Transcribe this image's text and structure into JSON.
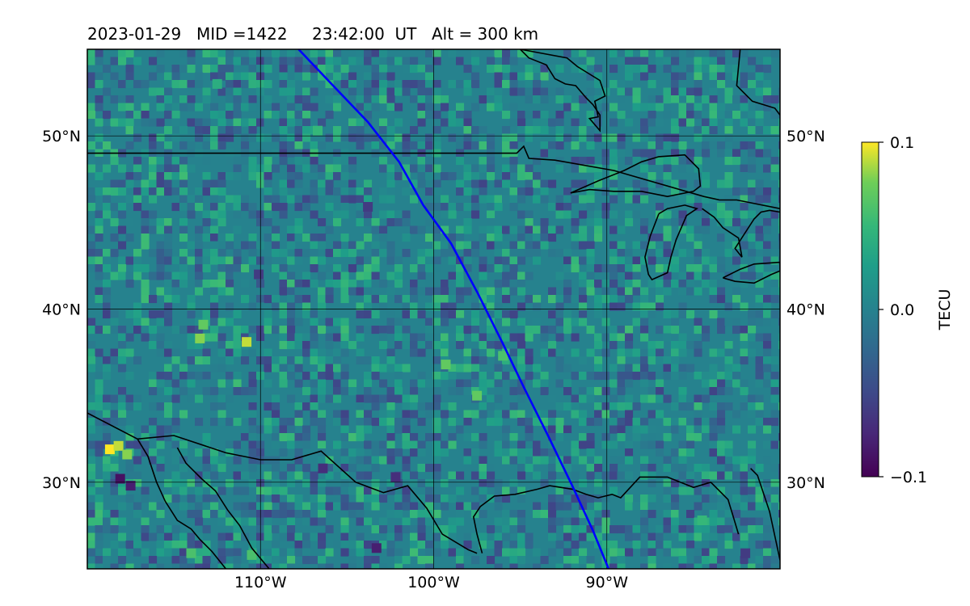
{
  "chart_data": {
    "type": "heatmap",
    "title": {
      "date": "2023-01-29",
      "mid": "MID =1422",
      "time": "23:42:00  UT",
      "alt": "Alt = 300 km"
    },
    "map": {
      "lon_range": [
        -120,
        -80
      ],
      "lat_range": [
        25,
        55
      ],
      "lon_ticks": [
        -110,
        -100,
        -90
      ],
      "lon_tick_labels": [
        "110°W",
        "100°W",
        "90°W"
      ],
      "lat_ticks": [
        30,
        40,
        50
      ],
      "lat_tick_labels": [
        "30°N",
        "40°N",
        "50°N"
      ],
      "grid": true,
      "background_value": 0.0,
      "colormap": "viridis"
    },
    "colorbar": {
      "label": "TECU",
      "min": -0.1,
      "max": 0.1,
      "ticks": [
        0.1,
        0.0,
        -0.1
      ],
      "tick_labels": [
        "0.1",
        "0.0",
        "−0.1"
      ],
      "placement": "right"
    },
    "track": {
      "color": "#0000ff",
      "lon": [
        -107.8,
        -105.9,
        -103.8,
        -102.0,
        -100.6,
        -99.0,
        -97.5,
        -96.0,
        -94.8,
        -93.4,
        -92.0,
        -90.8,
        -89.9
      ],
      "lat": [
        55.0,
        53.0,
        50.8,
        48.5,
        46.0,
        43.8,
        41.0,
        38.0,
        35.5,
        32.7,
        29.8,
        27.2,
        25.0
      ]
    },
    "coastlines": {
      "color": "#000000",
      "segments": [
        {
          "name": "us-canada-border",
          "lon": [
            -120,
            -95.2,
            -94.8,
            -94.5,
            -93.0,
            -89.6,
            -84.4,
            -83.5,
            -82.5,
            -80
          ],
          "lat": [
            49.0,
            49.0,
            49.4,
            48.7,
            48.6,
            48.0,
            46.5,
            46.3,
            46.3,
            45.8
          ]
        },
        {
          "name": "lake-superior",
          "lon": [
            -92.1,
            -90.5,
            -89.0,
            -88.0,
            -87.0,
            -85.5,
            -84.7,
            -84.6,
            -85.0,
            -86.5,
            -88.0,
            -89.6,
            -91.0,
            -92.1
          ],
          "lat": [
            46.7,
            47.4,
            48.0,
            48.5,
            48.8,
            48.9,
            48.1,
            47.1,
            46.8,
            46.5,
            46.8,
            46.8,
            46.9,
            46.7
          ]
        },
        {
          "name": "lake-michigan",
          "lon": [
            -87.0,
            -87.5,
            -87.8,
            -87.6,
            -87.4,
            -86.5,
            -86.3,
            -86.0,
            -85.4,
            -84.8,
            -85.5,
            -86.5,
            -87.0
          ],
          "lat": [
            45.5,
            44.2,
            43.0,
            42.0,
            41.7,
            42.1,
            43.0,
            44.0,
            45.4,
            45.8,
            46.0,
            45.8,
            45.5
          ]
        },
        {
          "name": "lake-huron",
          "lon": [
            -84.5,
            -83.8,
            -83.3,
            -82.4,
            -82.2,
            -82.6,
            -81.5,
            -81.1,
            -80.6,
            -80.0
          ],
          "lat": [
            45.8,
            45.3,
            44.7,
            44.1,
            43.0,
            43.5,
            45.2,
            45.6,
            45.7,
            45.6
          ]
        },
        {
          "name": "lake-erie",
          "lon": [
            -83.3,
            -82.6,
            -81.5,
            -80.5,
            -80.0,
            -80.0,
            -81.5,
            -82.3,
            -83.3
          ],
          "lat": [
            41.8,
            41.6,
            41.5,
            42.0,
            42.2,
            42.7,
            42.6,
            42.3,
            41.8
          ]
        },
        {
          "name": "hudson-bay-coast",
          "lon": [
            -95.0,
            -94.5,
            -93.5,
            -93.0,
            -92.4,
            -91.8,
            -91.2,
            -90.8,
            -90.4,
            -90.4,
            -91.0,
            -90.5,
            -90.7,
            -90.1,
            -90.4,
            -91.7,
            -92.3,
            -95.0
          ],
          "lat": [
            55.0,
            54.5,
            54.1,
            53.3,
            53.0,
            52.9,
            52.2,
            51.8,
            51.2,
            50.3,
            51.0,
            51.1,
            52.0,
            52.3,
            53.2,
            54.0,
            54.5,
            55.0
          ]
        },
        {
          "name": "james-bay-coast",
          "lon": [
            -82.3,
            -82.5,
            -81.6,
            -80.3,
            -80.0
          ],
          "lat": [
            55.0,
            52.9,
            52.0,
            51.6,
            51.2
          ]
        },
        {
          "name": "gulf-coast",
          "lon": [
            -97.2,
            -97.5,
            -97.7,
            -97.3,
            -96.5,
            -95.3,
            -94.0,
            -93.3,
            -92.0,
            -91.2,
            -90.5,
            -89.7,
            -89.2,
            -88.1,
            -86.5,
            -85.0,
            -84.0,
            -83.0,
            -82.7,
            -82.4
          ],
          "lat": [
            25.9,
            27.0,
            28.0,
            28.6,
            29.2,
            29.3,
            29.6,
            29.8,
            29.6,
            29.3,
            29.1,
            29.3,
            29.1,
            30.3,
            30.3,
            29.7,
            30.0,
            29.0,
            28.0,
            27.0
          ]
        },
        {
          "name": "florida-peninsula-east",
          "lon": [
            -80.0,
            -80.6,
            -81.3,
            -81.7
          ],
          "lat": [
            25.5,
            28.3,
            30.4,
            30.8
          ]
        },
        {
          "name": "mexico-border",
          "lon": [
            -120,
            -117.1,
            -115.0,
            -112.0,
            -110.0,
            -108.2,
            -106.5,
            -104.5,
            -102.9,
            -101.5,
            -100.4,
            -99.5,
            -98.0,
            -97.5
          ],
          "lat": [
            34.0,
            32.5,
            32.7,
            31.7,
            31.3,
            31.3,
            31.8,
            30.0,
            29.4,
            29.8,
            28.5,
            27.0,
            26.1,
            25.9
          ]
        },
        {
          "name": "baja-coast",
          "lon": [
            -117.1,
            -116.5,
            -116.0,
            -115.5,
            -114.8,
            -114.0,
            -113.5,
            -112.8,
            -112.0,
            -110.5
          ],
          "lat": [
            32.5,
            31.5,
            30.0,
            28.9,
            27.8,
            27.3,
            26.7,
            26.0,
            25.0,
            24.5
          ]
        },
        {
          "name": "sonora-coast",
          "lon": [
            -114.8,
            -114.3,
            -113.4,
            -112.6,
            -111.9,
            -111.2,
            -110.5,
            -109.5
          ],
          "lat": [
            32.0,
            31.1,
            30.2,
            29.5,
            28.4,
            27.5,
            26.2,
            25.0
          ]
        }
      ]
    },
    "anomalies": [
      {
        "lon": -118.7,
        "lat": 31.9,
        "value": 0.1
      },
      {
        "lon": -118.2,
        "lat": 32.1,
        "value": 0.09
      },
      {
        "lon": -117.7,
        "lat": 31.6,
        "value": 0.08
      },
      {
        "lon": -118.1,
        "lat": 30.2,
        "value": -0.09
      },
      {
        "lon": -117.5,
        "lat": 29.8,
        "value": -0.08
      },
      {
        "lon": -113.5,
        "lat": 38.3,
        "value": 0.08
      },
      {
        "lon": -110.8,
        "lat": 38.1,
        "value": 0.09
      },
      {
        "lon": -113.3,
        "lat": 39.1,
        "value": 0.07
      },
      {
        "lon": -99.3,
        "lat": 36.8,
        "value": 0.07
      },
      {
        "lon": -97.5,
        "lat": 35.0,
        "value": 0.07
      },
      {
        "lon": -96.0,
        "lat": 37.3,
        "value": 0.06
      },
      {
        "lon": -103.3,
        "lat": 26.2,
        "value": -0.08
      },
      {
        "lon": -110.5,
        "lat": 25.8,
        "value": 0.06
      },
      {
        "lon": -114.0,
        "lat": 25.9,
        "value": 0.06
      },
      {
        "lon": -102.2,
        "lat": 30.3,
        "value": -0.07
      },
      {
        "lon": -106.4,
        "lat": 30.8,
        "value": -0.07
      },
      {
        "lon": -84.5,
        "lat": 27.8,
        "value": 0.05
      },
      {
        "lon": -82.0,
        "lat": 25.9,
        "value": -0.06
      },
      {
        "lon": -106.7,
        "lat": 50.3,
        "value": 0.05
      },
      {
        "lon": -112.5,
        "lat": 53.0,
        "value": 0.04
      },
      {
        "lon": -103.8,
        "lat": 45.9,
        "value": -0.06
      },
      {
        "lon": -110.1,
        "lat": 42.0,
        "value": -0.06
      }
    ]
  }
}
